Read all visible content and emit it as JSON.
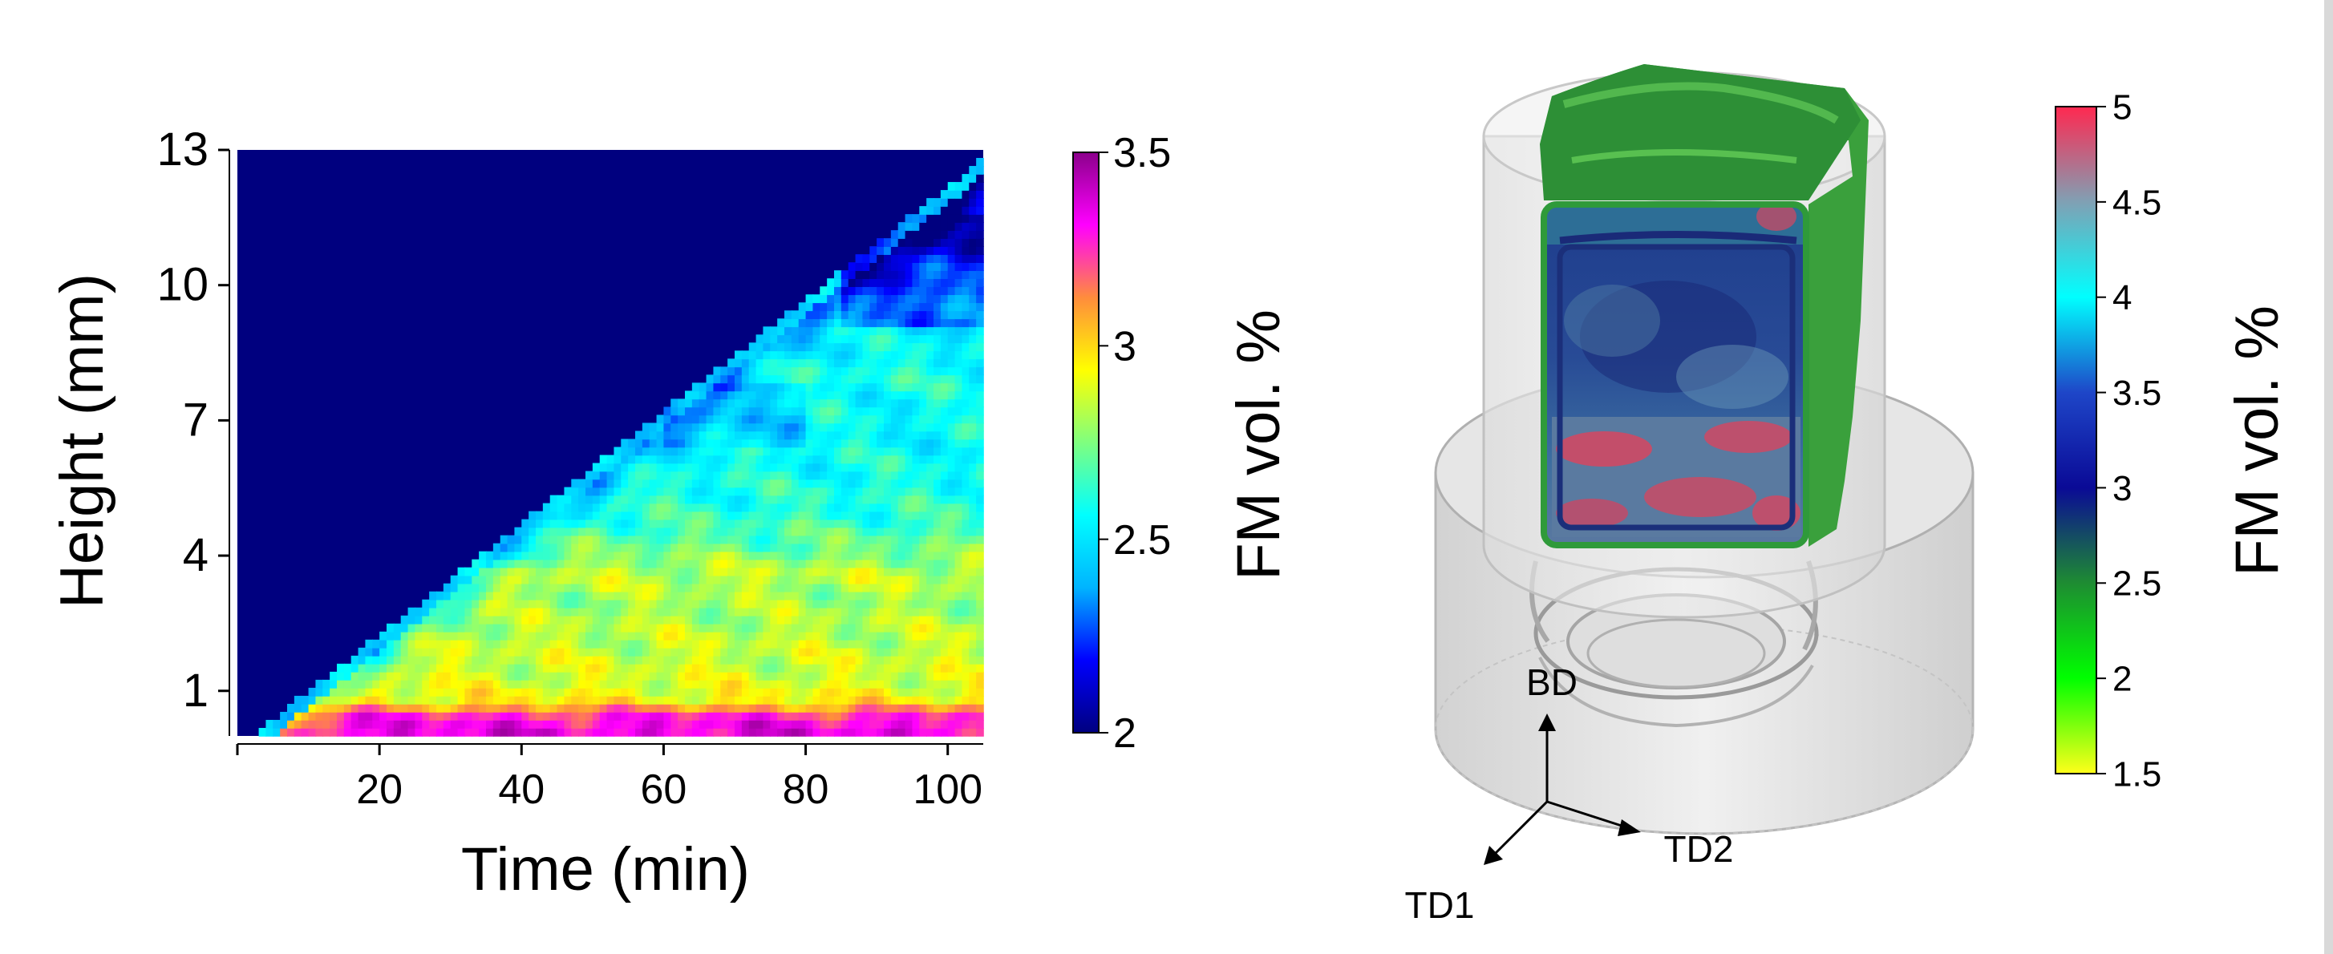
{
  "chart_data": [
    {
      "type": "heatmap",
      "title": "",
      "xlabel": "Time (min)",
      "ylabel": "Height (mm)",
      "xlim": [
        0,
        105
      ],
      "ylim": [
        0,
        13
      ],
      "x_ticks": [
        0,
        20,
        40,
        60,
        80,
        100
      ],
      "x_tick_labels": [
        "",
        "20",
        "40",
        "60",
        "80",
        "100"
      ],
      "y_ticks": [
        1,
        4,
        7,
        10,
        13
      ],
      "y_tick_labels": [
        "1",
        "4",
        "7",
        "10",
        "13"
      ],
      "build_front": {
        "time_start": 2,
        "height_start": 0,
        "time_end": 105,
        "height_end": 12.8
      },
      "colorbar": {
        "label": "FM vol. %",
        "range": [
          2,
          3.5
        ],
        "ticks": [
          "2",
          "2.5",
          "3",
          "3.5"
        ],
        "tick_values": [
          2,
          2.5,
          3,
          3.5
        ],
        "colors": [
          "#00007f",
          "#0000ff",
          "#00b4ff",
          "#00ffff",
          "#7fff7f",
          "#ffff00",
          "#ff8c3c",
          "#ff00ff",
          "#8b008b"
        ]
      },
      "profile_by_height": {
        "height": [
          0,
          0.4,
          0.8,
          1.2,
          2,
          3,
          3.6,
          4.2,
          5,
          6,
          7,
          8,
          9,
          10,
          11,
          12,
          13
        ],
        "value": [
          3.35,
          3.3,
          2.95,
          2.88,
          2.85,
          2.8,
          2.85,
          2.72,
          2.62,
          2.58,
          2.55,
          2.6,
          2.52,
          2.45,
          2.3,
          2.15,
          2.05
        ]
      },
      "background_value": 2.0
    },
    {
      "type": "volume-rendering",
      "colorbar": {
        "label": "FM vol. %",
        "range": [
          1.5,
          5
        ],
        "ticks": [
          "1.5",
          "2",
          "2.5",
          "3",
          "3.5",
          "4",
          "4.5",
          "5"
        ],
        "tick_values": [
          1.5,
          2,
          2.5,
          3,
          3.5,
          4,
          4.5,
          5
        ],
        "colors": [
          "#ffff1a",
          "#00ff00",
          "#1e8c32",
          "#0a0a96",
          "#1e46c8",
          "#00ffff",
          "#80a0b4",
          "#ff2850"
        ]
      },
      "axes_labels": {
        "bd": "BD",
        "td1": "TD1",
        "td2": "TD2"
      }
    }
  ]
}
